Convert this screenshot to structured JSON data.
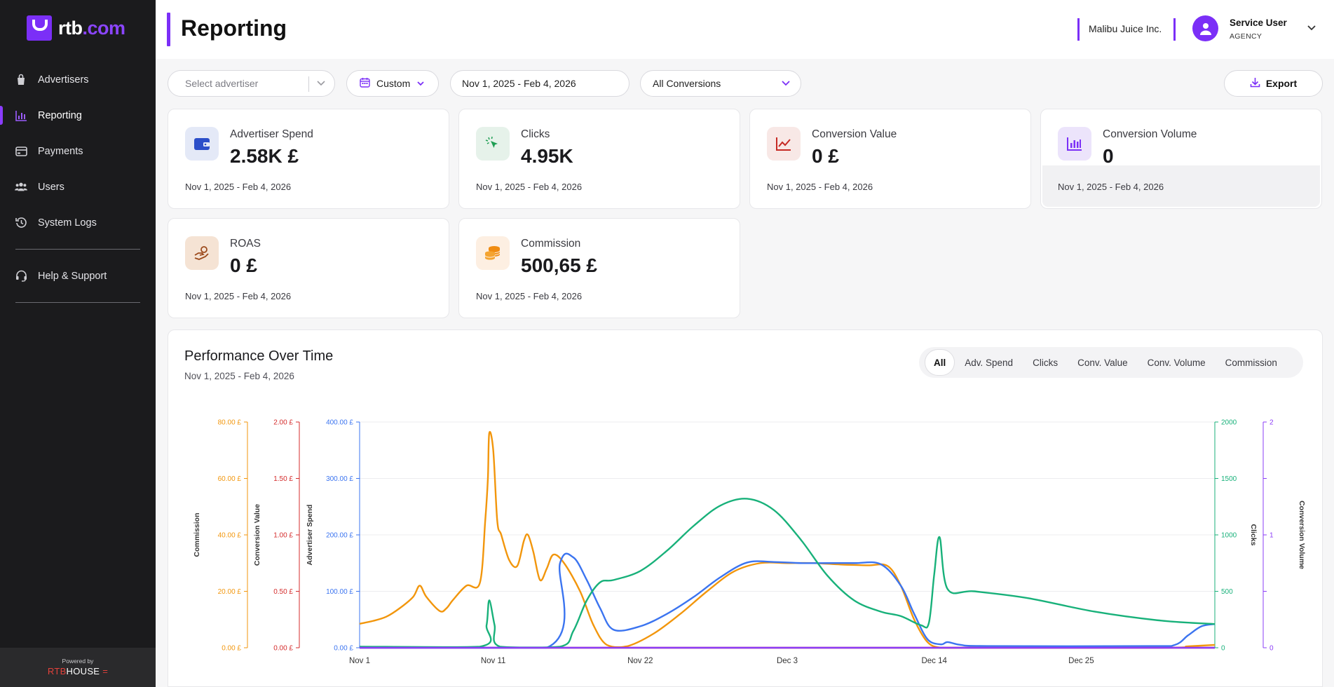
{
  "brand": {
    "name_prefix": "rtb",
    "name_suffix": ".com",
    "powered_by": "Powered by",
    "powered_brand_a": "RTB",
    "powered_brand_b": "HOUSE"
  },
  "sidebar": {
    "items": [
      {
        "label": "Advertisers",
        "icon": "bag-icon"
      },
      {
        "label": "Reporting",
        "icon": "bar-chart-icon",
        "active": true
      },
      {
        "label": "Payments",
        "icon": "card-icon"
      },
      {
        "label": "Users",
        "icon": "users-icon"
      },
      {
        "label": "System Logs",
        "icon": "history-icon"
      }
    ],
    "help": {
      "label": "Help & Support",
      "icon": "headset-icon"
    }
  },
  "header": {
    "title": "Reporting",
    "org": "Malibu Juice Inc.",
    "user_name": "Service User",
    "user_role": "AGENCY"
  },
  "filters": {
    "advertiser_placeholder": "Select advertiser",
    "range_type": "Custom",
    "date_range": "Nov 1, 2025 - Feb 4, 2026",
    "conversions": "All Conversions",
    "export": "Export"
  },
  "cards": [
    {
      "label": "Advertiser Spend",
      "value": "2.58K £",
      "date": "Nov 1, 2025 - Feb 4, 2026",
      "icon": "wallet-icon",
      "bg": "#e4e9f7",
      "fg": "#2c4fc9"
    },
    {
      "label": "Clicks",
      "value": "4.95K",
      "date": "Nov 1, 2025 - Feb 4, 2026",
      "icon": "cursor-click-icon",
      "bg": "#e6f2ea",
      "fg": "#1e9e53"
    },
    {
      "label": "Conversion Value",
      "value": "0 £",
      "date": "Nov 1, 2025 - Feb 4, 2026",
      "icon": "trend-line-icon",
      "bg": "#f8e8e6",
      "fg": "#c62a24"
    },
    {
      "label": "Conversion Volume",
      "value": "0",
      "date": "Nov 1, 2025 - Feb 4, 2026",
      "icon": "bar-chart-icon",
      "bg": "#ece4fb",
      "fg": "#7b2ff7"
    },
    {
      "label": "ROAS",
      "value": "0 £",
      "date": "Nov 1, 2025 - Feb 4, 2026",
      "icon": "hand-coin-icon",
      "bg": "#f5e3d4",
      "fg": "#9c4a1c"
    },
    {
      "label": "Commission",
      "value": "500,65 £",
      "date": "Nov 1, 2025 - Feb 4, 2026",
      "icon": "coins-icon",
      "bg": "#fdefe2",
      "fg": "#f08c12"
    }
  ],
  "performance": {
    "title": "Performance Over Time",
    "subtitle": "Nov 1, 2025 - Feb 4, 2026",
    "tabs": [
      "All",
      "Adv. Spend",
      "Clicks",
      "Conv. Value",
      "Conv. Volume",
      "Commission"
    ],
    "active_tab": "All"
  },
  "chart_data": {
    "type": "line",
    "x_ticks": [
      "Nov 1",
      "Nov 11",
      "Nov 22",
      "Dec 3",
      "Dec 14",
      "Dec 25"
    ],
    "x_tick_days": [
      0,
      10,
      21,
      32,
      43,
      54
    ],
    "x_max_day": 64,
    "axes": [
      {
        "id": "commission",
        "label": "Commission",
        "side": "left",
        "color": "#f2960c",
        "ticks": [
          "0.00 £",
          "20.00 £",
          "40.00 £",
          "60.00 £",
          "80.00 £"
        ],
        "max": 80
      },
      {
        "id": "conv_value",
        "label": "Conversion Value",
        "side": "left",
        "color": "#d42b2b",
        "ticks": [
          "0.00 £",
          "0.50 £",
          "1.00 £",
          "1.50 £",
          "2.00 £"
        ],
        "max": 2
      },
      {
        "id": "spend",
        "label": "Advertiser Spend",
        "side": "left",
        "color": "#3b74f0",
        "ticks": [
          "0.00 £",
          "100.00 £",
          "200.00 £",
          "300.00 £",
          "400.00 £"
        ],
        "max": 400
      },
      {
        "id": "clicks",
        "label": "Clicks",
        "side": "right",
        "color": "#18b17a",
        "ticks": [
          "0",
          "500",
          "1000",
          "1500",
          "2000"
        ],
        "max": 2000
      },
      {
        "id": "conv_volume",
        "label": "Conversion Volume",
        "side": "right",
        "color": "#8b3cf7",
        "ticks": [
          "0",
          "",
          "1",
          "",
          "2"
        ],
        "max": 2
      }
    ],
    "series": [
      {
        "name": "Commission",
        "axis": "commission",
        "color": "#f2960c",
        "points": [
          [
            0,
            8.5
          ],
          [
            1,
            9.5
          ],
          [
            2,
            11
          ],
          [
            3,
            14
          ],
          [
            4,
            18
          ],
          [
            4.5,
            22
          ],
          [
            5,
            18
          ],
          [
            6,
            13
          ],
          [
            6.5,
            14
          ],
          [
            7,
            17
          ],
          [
            8,
            22
          ],
          [
            9,
            23
          ],
          [
            9.4,
            45
          ],
          [
            9.6,
            60
          ],
          [
            9.7,
            76
          ],
          [
            10,
            70
          ],
          [
            10.3,
            45
          ],
          [
            10.6,
            40
          ],
          [
            11.2,
            31
          ],
          [
            11.8,
            29
          ],
          [
            12.3,
            38
          ],
          [
            12.6,
            40
          ],
          [
            13,
            34
          ],
          [
            13.5,
            24
          ],
          [
            14,
            28
          ],
          [
            14.5,
            33
          ],
          [
            15.3,
            30
          ],
          [
            16.5,
            20
          ],
          [
            17.5,
            8
          ],
          [
            18.5,
            1
          ],
          [
            20,
            0.5
          ],
          [
            22,
            5
          ],
          [
            24,
            12
          ],
          [
            26,
            20
          ],
          [
            28,
            27
          ],
          [
            30,
            30
          ],
          [
            32,
            30
          ],
          [
            34,
            30
          ],
          [
            36,
            29.5
          ],
          [
            38,
            29.2
          ],
          [
            39.5,
            29
          ],
          [
            40.5,
            22
          ],
          [
            41.5,
            10
          ],
          [
            42.5,
            2
          ],
          [
            43.5,
            0
          ],
          [
            45,
            0
          ],
          [
            60,
            0
          ],
          [
            62,
            0.5
          ],
          [
            64,
            1
          ]
        ]
      },
      {
        "name": "Conversion Value",
        "axis": "conv_value",
        "color": "#d42b2b",
        "points": [
          [
            0,
            0
          ],
          [
            64,
            0
          ]
        ]
      },
      {
        "name": "Advertiser Spend",
        "axis": "spend",
        "color": "#3b74f0",
        "points": [
          [
            0,
            0
          ],
          [
            14,
            0
          ],
          [
            15,
            150
          ],
          [
            16,
            160
          ],
          [
            17,
            120
          ],
          [
            18,
            70
          ],
          [
            19,
            32
          ],
          [
            21,
            38
          ],
          [
            23,
            60
          ],
          [
            25,
            90
          ],
          [
            27,
            125
          ],
          [
            29,
            151
          ],
          [
            31,
            152
          ],
          [
            33,
            150
          ],
          [
            35,
            150
          ],
          [
            37,
            150
          ],
          [
            39,
            148
          ],
          [
            40.5,
            110
          ],
          [
            41.5,
            60
          ],
          [
            42.5,
            15
          ],
          [
            43.5,
            6
          ],
          [
            44,
            10
          ],
          [
            45,
            5
          ],
          [
            47,
            3
          ],
          [
            59,
            3
          ],
          [
            61,
            5
          ],
          [
            62,
            22
          ],
          [
            63,
            38
          ],
          [
            64,
            42
          ]
        ]
      },
      {
        "name": "Clicks",
        "axis": "clicks",
        "color": "#18b17a",
        "points": [
          [
            0,
            10
          ],
          [
            9,
            10
          ],
          [
            9.5,
            200
          ],
          [
            9.7,
            420
          ],
          [
            10.1,
            200
          ],
          [
            10.5,
            10
          ],
          [
            15,
            10
          ],
          [
            16,
            150
          ],
          [
            17,
            420
          ],
          [
            18,
            580
          ],
          [
            19,
            600
          ],
          [
            21,
            680
          ],
          [
            23,
            860
          ],
          [
            25,
            1080
          ],
          [
            27,
            1260
          ],
          [
            29,
            1320
          ],
          [
            31,
            1220
          ],
          [
            33,
            960
          ],
          [
            35,
            640
          ],
          [
            37,
            420
          ],
          [
            39,
            320
          ],
          [
            40.5,
            280
          ],
          [
            42,
            200
          ],
          [
            42.6,
            220
          ],
          [
            43,
            650
          ],
          [
            43.4,
            980
          ],
          [
            44,
            520
          ],
          [
            46,
            500
          ],
          [
            50,
            440
          ],
          [
            55,
            320
          ],
          [
            60,
            240
          ],
          [
            64,
            210
          ]
        ]
      },
      {
        "name": "Conversion Volume",
        "axis": "conv_volume",
        "color": "#8b3cf7",
        "points": [
          [
            0,
            0
          ],
          [
            64,
            0
          ]
        ]
      }
    ],
    "grid": true,
    "legend": "none"
  }
}
